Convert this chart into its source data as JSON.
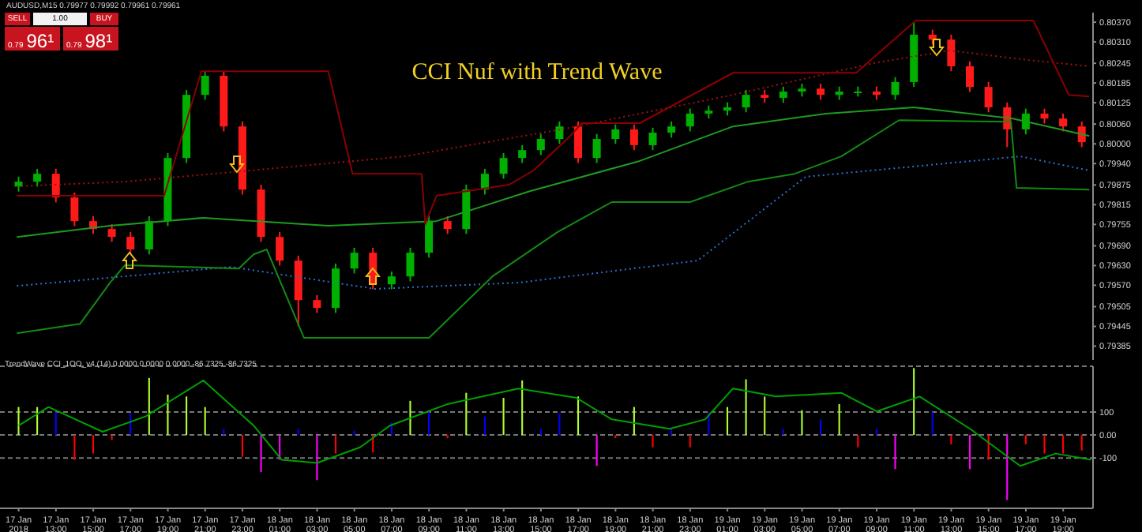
{
  "chart_data": [
    {
      "type": "candlestick",
      "title": "CCI Nuf with Trend Wave",
      "annotations": [
        "AUDUSD,M15  0.79977 0.79992 0.79961 0.79961",
        "SELL",
        "1.00",
        "BUY",
        "0.79 96¹",
        "0.79 98¹"
      ],
      "x": [
        "2018-01-17T11:00",
        "2018-01-17T12:00",
        "2018-01-17T13:00",
        "2018-01-17T14:00",
        "2018-01-17T15:00",
        "2018-01-17T16:00",
        "2018-01-17T17:00",
        "2018-01-17T18:00",
        "2018-01-17T19:00",
        "2018-01-17T20:00",
        "2018-01-17T21:00",
        "2018-01-17T22:00",
        "2018-01-17T23:00",
        "2018-01-18T00:00",
        "2018-01-18T01:00",
        "2018-01-18T02:00",
        "2018-01-18T03:00",
        "2018-01-18T04:00",
        "2018-01-18T05:00",
        "2018-01-18T06:00",
        "2018-01-18T07:00",
        "2018-01-18T08:00",
        "2018-01-18T09:00",
        "2018-01-18T10:00",
        "2018-01-18T11:00",
        "2018-01-18T12:00",
        "2018-01-18T13:00",
        "2018-01-18T14:00",
        "2018-01-18T15:00",
        "2018-01-18T16:00",
        "2018-01-18T17:00",
        "2018-01-18T18:00",
        "2018-01-18T19:00",
        "2018-01-18T20:00",
        "2018-01-18T21:00",
        "2018-01-18T22:00",
        "2018-01-18T23:00",
        "2018-01-19T00:00",
        "2018-01-19T01:00",
        "2018-01-19T02:00",
        "2018-01-19T03:00",
        "2018-01-19T04:00",
        "2018-01-19T05:00",
        "2018-01-19T06:00",
        "2018-01-19T07:00",
        "2018-01-19T08:00",
        "2018-01-19T09:00",
        "2018-01-19T10:00",
        "2018-01-19T11:00",
        "2018-01-19T12:00",
        "2018-01-19T13:00",
        "2018-01-19T14:00",
        "2018-01-19T15:00",
        "2018-01-19T16:00",
        "2018-01-19T17:00",
        "2018-01-19T18:00",
        "2018-01-19T19:00",
        "2018-01-19T20:00"
      ],
      "ohlc": [
        [
          0.7987,
          0.799,
          0.79855,
          0.79885
        ],
        [
          0.79885,
          0.79924,
          0.7987,
          0.79909
        ],
        [
          0.79909,
          0.79924,
          0.79822,
          0.79837
        ],
        [
          0.79837,
          0.79852,
          0.7975,
          0.79765
        ],
        [
          0.79765,
          0.7978,
          0.79726,
          0.79741
        ],
        [
          0.79741,
          0.79756,
          0.79702,
          0.79717
        ],
        [
          0.79717,
          0.79732,
          0.79664,
          0.79679
        ],
        [
          0.79679,
          0.7978,
          0.79664,
          0.79765
        ],
        [
          0.79765,
          0.79972,
          0.7975,
          0.79957
        ],
        [
          0.79957,
          0.80164,
          0.79942,
          0.80149
        ],
        [
          0.80149,
          0.80222,
          0.80134,
          0.80207
        ],
        [
          0.80207,
          0.80222,
          0.80038,
          0.80053
        ],
        [
          0.80053,
          0.80068,
          0.79846,
          0.79861
        ],
        [
          0.79861,
          0.79876,
          0.79702,
          0.79717
        ],
        [
          0.79717,
          0.79732,
          0.7963,
          0.79645
        ],
        [
          0.79645,
          0.7966,
          0.79445,
          0.79525
        ],
        [
          0.79525,
          0.7954,
          0.79486,
          0.79501
        ],
        [
          0.79501,
          0.79636,
          0.79486,
          0.79621
        ],
        [
          0.79621,
          0.79684,
          0.79606,
          0.79669
        ],
        [
          0.79669,
          0.79684,
          0.79558,
          0.79573
        ],
        [
          0.79573,
          0.79612,
          0.79558,
          0.79597
        ],
        [
          0.79597,
          0.79684,
          0.79582,
          0.79669
        ],
        [
          0.79669,
          0.7978,
          0.79654,
          0.79765
        ],
        [
          0.79765,
          0.7978,
          0.79726,
          0.79741
        ],
        [
          0.79741,
          0.79876,
          0.79726,
          0.79861
        ],
        [
          0.79861,
          0.79924,
          0.79846,
          0.79909
        ],
        [
          0.79909,
          0.79972,
          0.79894,
          0.79957
        ],
        [
          0.79957,
          0.79996,
          0.79942,
          0.79981
        ],
        [
          0.79981,
          0.8003,
          0.79966,
          0.80015
        ],
        [
          0.80015,
          0.80068,
          0.8,
          0.80053
        ],
        [
          0.80053,
          0.80068,
          0.79942,
          0.79957
        ],
        [
          0.79957,
          0.8003,
          0.79942,
          0.80015
        ],
        [
          0.80015,
          0.80059,
          0.8,
          0.80044
        ],
        [
          0.80044,
          0.80059,
          0.79981,
          0.79996
        ],
        [
          0.79996,
          0.80049,
          0.79981,
          0.80034
        ],
        [
          0.80034,
          0.80068,
          0.80019,
          0.80053
        ],
        [
          0.80053,
          0.80107,
          0.80038,
          0.80092
        ],
        [
          0.80092,
          0.80116,
          0.80077,
          0.80101
        ],
        [
          0.80101,
          0.80126,
          0.80086,
          0.80111
        ],
        [
          0.80111,
          0.80164,
          0.80096,
          0.80149
        ],
        [
          0.80149,
          0.80164,
          0.80125,
          0.8014
        ],
        [
          0.8014,
          0.80174,
          0.80125,
          0.80159
        ],
        [
          0.80159,
          0.80183,
          0.80144,
          0.80168
        ],
        [
          0.80168,
          0.80183,
          0.80134,
          0.80149
        ],
        [
          0.80149,
          0.80174,
          0.80134,
          0.80159
        ],
        [
          0.80159,
          0.80174,
          0.80144,
          0.80159
        ],
        [
          0.80159,
          0.80174,
          0.80134,
          0.80149
        ],
        [
          0.80149,
          0.80203,
          0.80134,
          0.80188
        ],
        [
          0.80188,
          0.8037,
          0.80173,
          0.80332
        ],
        [
          0.80332,
          0.80347,
          0.80302,
          0.80317
        ],
        [
          0.80317,
          0.80332,
          0.80221,
          0.80236
        ],
        [
          0.80236,
          0.80251,
          0.80158,
          0.80173
        ],
        [
          0.80173,
          0.80188,
          0.80096,
          0.80111
        ],
        [
          0.80111,
          0.80126,
          0.7999,
          0.80044
        ],
        [
          0.80044,
          0.80107,
          0.80029,
          0.80092
        ],
        [
          0.80092,
          0.80107,
          0.80062,
          0.80077
        ],
        [
          0.80077,
          0.80092,
          0.80038,
          0.80053
        ],
        [
          0.80053,
          0.80068,
          0.7999,
          0.80005
        ]
      ],
      "series": [
        {
          "type": "line",
          "color": "#1f9a1f",
          "line_style": "solid",
          "x": [
            "2018-01-17T10:54",
            "2018-01-17T15:54",
            "2018-01-17T20:54",
            "2018-01-18T03:36",
            "2018-01-18T09:24",
            "2018-01-18T14:24",
            "2018-01-18T20:18",
            "2018-01-19T01:18",
            "2018-01-19T06:18",
            "2018-01-19T11:00",
            "2018-01-19T16:18",
            "2018-01-19T20:24"
          ],
          "values": [
            0.79717,
            0.79751,
            0.79775,
            0.79751,
            0.79765,
            0.79856,
            0.79948,
            0.80053,
            0.80092,
            0.80111,
            0.80077,
            0.80024
          ]
        },
        {
          "type": "line",
          "color": "#a01010",
          "line_style": "dotted",
          "x": [
            "2018-01-17T10:54",
            "2018-01-17T16:42",
            "2018-01-17T23:24",
            "2018-01-18T07:42",
            "2018-01-18T16:06",
            "2018-01-19T01:18",
            "2018-01-19T08:48",
            "2018-01-19T12:54",
            "2018-01-19T17:06",
            "2018-01-19T20:24"
          ],
          "values": [
            0.79871,
            0.79885,
            0.79919,
            0.79962,
            0.80044,
            0.80149,
            0.80245,
            0.80284,
            0.80255,
            0.80236
          ]
        },
        {
          "type": "line",
          "color": "#2a6fd0",
          "line_style": "dotted",
          "x": [
            "2018-01-17T10:54",
            "2018-01-17T22:24",
            "2018-01-18T06:06",
            "2018-01-18T13:48",
            "2018-01-18T23:24",
            "2018-01-19T05:12",
            "2018-01-19T16:42",
            "2018-01-19T20:24"
          ],
          "values": [
            0.79568,
            0.79626,
            0.79559,
            0.79578,
            0.79645,
            0.799,
            0.79962,
            0.79919
          ]
        },
        {
          "type": "line",
          "color": "#8b0000",
          "line_style": "solid",
          "x": [
            "2018-01-17T10:54",
            "2018-01-17T18:48",
            "2018-01-17T20:48",
            "2018-01-18T03:36",
            "2018-01-18T04:54",
            "2018-01-18T08:36",
            "2018-01-18T08:48",
            "2018-01-18T09:24",
            "2018-01-18T13:18",
            "2018-01-18T14:36",
            "2018-01-18T16:30",
            "2018-01-18T17:12",
            "2018-01-18T20:18",
            "2018-01-19T01:18",
            "2018-01-19T07:54",
            "2018-01-19T11:06",
            "2018-01-19T17:24",
            "2018-01-19T19:18",
            "2018-01-19T20:24"
          ],
          "values": [
            0.79842,
            0.79842,
            0.80221,
            0.80221,
            0.79909,
            0.79909,
            0.79756,
            0.79842,
            0.79876,
            0.79919,
            0.8002,
            0.80063,
            0.80063,
            0.80216,
            0.80216,
            0.80375,
            0.80375,
            0.80149,
            0.80144
          ]
        },
        {
          "type": "line",
          "color": "#138a13",
          "line_style": "solid",
          "x": [
            "2018-01-17T10:54",
            "2018-01-17T14:18",
            "2018-01-17T15:54",
            "2018-01-17T16:42",
            "2018-01-17T22:48",
            "2018-01-17T23:36",
            "2018-01-18T00:18",
            "2018-01-18T02:18",
            "2018-01-18T09:00",
            "2018-01-18T12:24",
            "2018-01-18T15:54",
            "2018-01-18T18:48",
            "2018-01-18T23:00",
            "2018-01-19T02:06",
            "2018-01-19T04:36",
            "2018-01-19T07:06",
            "2018-01-19T10:12",
            "2018-01-19T16:12",
            "2018-01-19T16:30",
            "2018-01-19T20:24"
          ],
          "values": [
            0.79424,
            0.79453,
            0.79578,
            0.79631,
            0.79621,
            0.79664,
            0.79679,
            0.7941,
            0.7941,
            0.79597,
            0.79732,
            0.79823,
            0.79823,
            0.79885,
            0.79909,
            0.79962,
            0.80072,
            0.80067,
            0.79866,
            0.79861
          ]
        }
      ],
      "xlim": [
        "2018-01-17T10:00",
        "2018-01-19T20:36"
      ],
      "ylim": [
        0.79343,
        0.80399
      ],
      "yticks": [
        {
          "value": 0.8037,
          "label": "0.80370"
        },
        {
          "value": 0.8031,
          "label": "0.80310"
        },
        {
          "value": 0.80245,
          "label": "0.80245"
        },
        {
          "value": 0.80185,
          "label": "0.80185"
        },
        {
          "value": 0.80125,
          "label": "0.80125"
        },
        {
          "value": 0.8006,
          "label": "0.80060"
        },
        {
          "value": 0.8,
          "label": "0.80000"
        },
        {
          "value": 0.7994,
          "label": "0.79940"
        },
        {
          "value": 0.79875,
          "label": "0.79875"
        },
        {
          "value": 0.79815,
          "label": "0.79815"
        },
        {
          "value": 0.79755,
          "label": "0.79755"
        },
        {
          "value": 0.7969,
          "label": "0.79690"
        },
        {
          "value": 0.7963,
          "label": "0.79630"
        },
        {
          "value": 0.7957,
          "label": "0.79570"
        },
        {
          "value": 0.79505,
          "label": "0.79505"
        },
        {
          "value": 0.79445,
          "label": "0.79445"
        },
        {
          "value": 0.79385,
          "label": "0.79385"
        }
      ],
      "tick_labels": "y"
    },
    {
      "type": "bar",
      "title": "TrendWave CCI_1OO_v4 (14) 0.0000 0.0000 0.0000 -86.7325 -86.7325",
      "x": [
        "2018-01-17T11:00",
        "2018-01-17T12:00",
        "2018-01-17T13:00",
        "2018-01-17T14:00",
        "2018-01-17T15:00",
        "2018-01-17T16:00",
        "2018-01-17T17:00",
        "2018-01-17T18:00",
        "2018-01-17T19:00",
        "2018-01-17T20:00",
        "2018-01-17T21:00",
        "2018-01-17T22:00",
        "2018-01-17T23:00",
        "2018-01-18T00:00",
        "2018-01-18T01:00",
        "2018-01-18T02:00",
        "2018-01-18T03:00",
        "2018-01-18T04:00",
        "2018-01-18T05:00",
        "2018-01-18T06:00",
        "2018-01-18T07:00",
        "2018-01-18T08:00",
        "2018-01-18T09:00",
        "2018-01-18T10:00",
        "2018-01-18T11:00",
        "2018-01-18T12:00",
        "2018-01-18T13:00",
        "2018-01-18T14:00",
        "2018-01-18T15:00",
        "2018-01-18T16:00",
        "2018-01-18T17:00",
        "2018-01-18T18:00",
        "2018-01-18T19:00",
        "2018-01-18T20:00",
        "2018-01-18T21:00",
        "2018-01-18T22:00",
        "2018-01-18T23:00",
        "2018-01-19T00:00",
        "2018-01-19T01:00",
        "2018-01-19T02:00",
        "2018-01-19T03:00",
        "2018-01-19T04:00",
        "2018-01-19T05:00",
        "2018-01-19T06:00",
        "2018-01-19T07:00",
        "2018-01-19T08:00",
        "2018-01-19T09:00",
        "2018-01-19T10:00",
        "2018-01-19T11:00",
        "2018-01-19T12:00",
        "2018-01-19T13:00",
        "2018-01-19T14:00",
        "2018-01-19T15:00",
        "2018-01-19T16:00",
        "2018-01-19T17:00",
        "2018-01-19T18:00",
        "2018-01-19T19:00",
        "2018-01-19T20:00"
      ],
      "values": [
        122,
        122,
        100,
        -108,
        -81,
        -22,
        95,
        249,
        176,
        168,
        122,
        27,
        -95,
        -162,
        -108,
        27,
        -197,
        -81,
        19,
        -76,
        54,
        149,
        100,
        -14,
        184,
        81,
        162,
        238,
        27,
        95,
        168,
        -135,
        -14,
        122,
        -54,
        27,
        -54,
        100,
        122,
        243,
        168,
        27,
        108,
        68,
        135,
        -54,
        27,
        -149,
        292,
        100,
        -41,
        -149,
        -108,
        -284,
        -41,
        -81,
        -81,
        -68
      ],
      "colors": [
        "#adff2f",
        "#adff2f",
        "#0000ff",
        "#ff0000",
        "#ff0000",
        "#ff0000",
        "#0000ff",
        "#adff2f",
        "#adff2f",
        "#adff2f",
        "#adff2f",
        "#0000ff",
        "#ff0000",
        "#ff00ff",
        "#ff00ff",
        "#0000ff",
        "#ff00ff",
        "#ff0000",
        "#0000ff",
        "#ff0000",
        "#0000ff",
        "#adff2f",
        "#0000ff",
        "#ff0000",
        "#adff2f",
        "#0000ff",
        "#adff2f",
        "#adff2f",
        "#0000ff",
        "#0000ff",
        "#adff2f",
        "#ff00ff",
        "#ff0000",
        "#adff2f",
        "#ff0000",
        "#0000ff",
        "#ff0000",
        "#0000ff",
        "#adff2f",
        "#adff2f",
        "#adff2f",
        "#0000ff",
        "#adff2f",
        "#0000ff",
        "#adff2f",
        "#ff0000",
        "#0000ff",
        "#ff00ff",
        "#adff2f",
        "#0000ff",
        "#ff0000",
        "#ff00ff",
        "#ff0000",
        "#ff00ff",
        "#ff0000",
        "#ff0000",
        "#ff0000",
        "#ff0000"
      ],
      "series": [
        {
          "type": "line",
          "color": "#00a000",
          "line_style": "solid",
          "x": [
            "2018-01-17T11:00",
            "2018-01-17T12:36",
            "2018-01-17T15:30",
            "2018-01-17T17:48",
            "2018-01-17T20:54",
            "2018-01-17T23:36",
            "2018-01-18T01:06",
            "2018-01-18T03:00",
            "2018-01-18T05:18",
            "2018-01-18T06:54",
            "2018-01-18T10:00",
            "2018-01-18T13:48",
            "2018-01-18T16:54",
            "2018-01-18T18:48",
            "2018-01-18T21:54",
            "2018-01-18T23:48",
            "2018-01-19T01:18",
            "2018-01-19T03:36",
            "2018-01-19T07:06",
            "2018-01-19T09:00",
            "2018-01-19T11:18",
            "2018-01-19T14:00",
            "2018-01-19T16:42",
            "2018-01-19T18:36",
            "2018-01-19T20:30"
          ],
          "values": [
            41,
            122,
            14,
            81,
            238,
            41,
            -108,
            -122,
            -54,
            41,
            135,
            203,
            162,
            68,
            27,
            68,
            203,
            168,
            184,
            103,
            168,
            27,
            -135,
            -81,
            -108
          ]
        }
      ],
      "xlim": [
        "2018-01-17T10:00",
        "2018-01-19T20:36"
      ],
      "ylim": [
        -320,
        300
      ],
      "xticks": [
        {
          "value": "2018-01-17T11:00",
          "label": "17 Jan 2018"
        },
        {
          "value": "2018-01-17T13:00",
          "label": "17 Jan 13:00"
        },
        {
          "value": "2018-01-17T15:00",
          "label": "17 Jan 15:00"
        },
        {
          "value": "2018-01-17T17:00",
          "label": "17 Jan 17:00"
        },
        {
          "value": "2018-01-17T19:00",
          "label": "17 Jan 19:00"
        },
        {
          "value": "2018-01-17T21:00",
          "label": "17 Jan 21:00"
        },
        {
          "value": "2018-01-17T23:00",
          "label": "17 Jan 23:00"
        },
        {
          "value": "2018-01-18T01:00",
          "label": "18 Jan 01:00"
        },
        {
          "value": "2018-01-18T03:00",
          "label": "18 Jan 03:00"
        },
        {
          "value": "2018-01-18T05:00",
          "label": "18 Jan 05:00"
        },
        {
          "value": "2018-01-18T07:00",
          "label": "18 Jan 07:00"
        },
        {
          "value": "2018-01-18T09:00",
          "label": "18 Jan 09:00"
        },
        {
          "value": "2018-01-18T11:00",
          "label": "18 Jan 11:00"
        },
        {
          "value": "2018-01-18T13:00",
          "label": "18 Jan 13:00"
        },
        {
          "value": "2018-01-18T15:00",
          "label": "18 Jan 15:00"
        },
        {
          "value": "2018-01-18T17:00",
          "label": "18 Jan 17:00"
        },
        {
          "value": "2018-01-18T19:00",
          "label": "18 Jan 19:00"
        },
        {
          "value": "2018-01-18T21:00",
          "label": "18 Jan 21:00"
        },
        {
          "value": "2018-01-18T23:00",
          "label": "18 Jan 23:00"
        },
        {
          "value": "2018-01-19T01:00",
          "label": "19 Jan 01:00"
        },
        {
          "value": "2018-01-19T03:00",
          "label": "19 Jan 03:00"
        },
        {
          "value": "2018-01-19T05:00",
          "label": "19 Jan 05:00"
        },
        {
          "value": "2018-01-19T07:00",
          "label": "19 Jan 07:00"
        },
        {
          "value": "2018-01-19T09:00",
          "label": "19 Jan 09:00"
        },
        {
          "value": "2018-01-19T11:00",
          "label": "19 Jan 11:00"
        },
        {
          "value": "2018-01-19T13:00",
          "label": "19 Jan 13:00"
        },
        {
          "value": "2018-01-19T15:00",
          "label": "19 Jan 15:00"
        },
        {
          "value": "2018-01-19T17:00",
          "label": "19 Jan 17:00"
        },
        {
          "value": "2018-01-19T19:00",
          "label": "19 Jan 19:00"
        }
      ],
      "yticks": [
        {
          "value": 100,
          "label": "100"
        },
        {
          "value": 0,
          "label": "0.00"
        },
        {
          "value": -100,
          "label": "-100"
        }
      ],
      "grid": "y"
    }
  ]
}
